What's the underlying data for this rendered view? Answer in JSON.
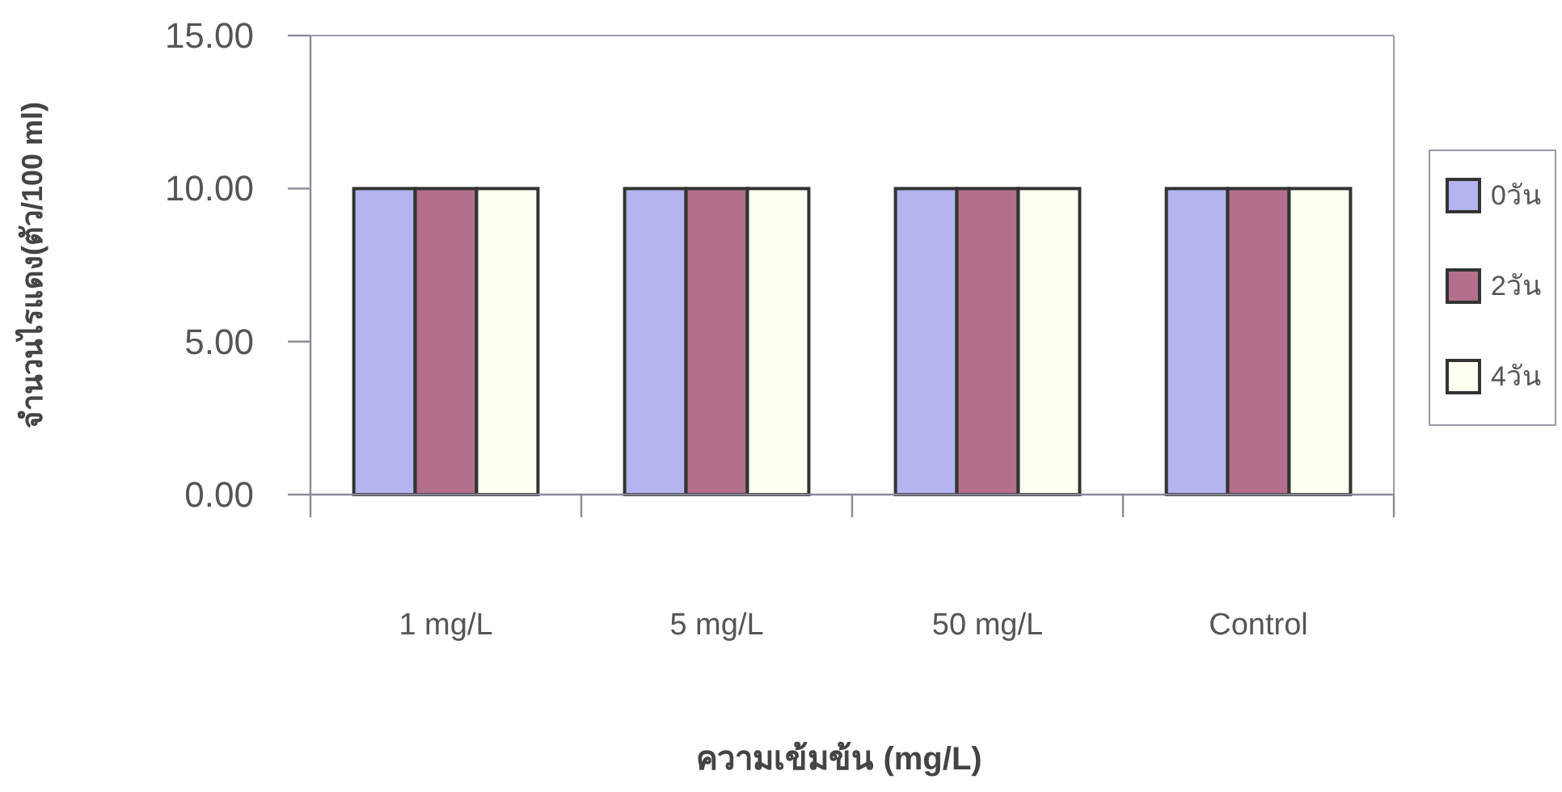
{
  "chart_data": {
    "type": "bar",
    "xlabel": "ความเข้มข้น (mg/L)",
    "ylabel": "จำนวนไรแดง(ตัว/100 ml)",
    "categories": [
      "1 mg/L",
      "5 mg/L",
      "50 mg/L",
      "Control"
    ],
    "series": [
      {
        "name": "0วัน",
        "color": "#b4b4f0",
        "values": [
          10,
          10,
          10,
          10
        ]
      },
      {
        "name": "2วัน",
        "color": "#b36f8c",
        "values": [
          10,
          10,
          10,
          10
        ]
      },
      {
        "name": "4วัน",
        "color": "#fffff2",
        "values": [
          10,
          10,
          10,
          10
        ]
      }
    ],
    "ylim": [
      0,
      15
    ],
    "yticks": [
      {
        "value": 0,
        "label": "0.00"
      },
      {
        "value": 5,
        "label": "5.00"
      },
      {
        "value": 10,
        "label": "10.00"
      },
      {
        "value": 15,
        "label": "15.00"
      }
    ],
    "grid": false,
    "legend": "right"
  }
}
